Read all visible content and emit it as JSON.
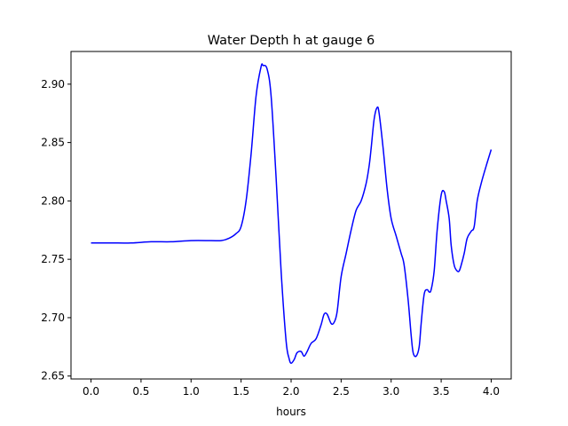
{
  "chart_data": {
    "type": "line",
    "title": "Water Depth h at gauge 6",
    "xlabel": "hours",
    "ylabel": "",
    "xlim": [
      -0.2,
      4.2
    ],
    "ylim": [
      2.6475,
      2.928
    ],
    "xticks": [
      0.0,
      0.5,
      1.0,
      1.5,
      2.0,
      2.5,
      3.0,
      3.5,
      4.0
    ],
    "xtick_labels": [
      "0.0",
      "0.5",
      "1.0",
      "1.5",
      "2.0",
      "2.5",
      "3.0",
      "3.5",
      "4.0"
    ],
    "yticks": [
      2.65,
      2.7,
      2.75,
      2.8,
      2.85,
      2.9
    ],
    "ytick_labels": [
      "2.65",
      "2.70",
      "2.75",
      "2.80",
      "2.85",
      "2.90"
    ],
    "grid": false,
    "series": [
      {
        "color": "#0000ff",
        "x": [
          0.0,
          0.2,
          0.4,
          0.6,
          0.8,
          1.0,
          1.2,
          1.3,
          1.38,
          1.45,
          1.5,
          1.55,
          1.6,
          1.65,
          1.7,
          1.72,
          1.76,
          1.8,
          1.85,
          1.9,
          1.95,
          1.98,
          2.0,
          2.03,
          2.06,
          2.1,
          2.13,
          2.16,
          2.2,
          2.25,
          2.3,
          2.33,
          2.36,
          2.4,
          2.43,
          2.46,
          2.5,
          2.55,
          2.6,
          2.65,
          2.7,
          2.75,
          2.78,
          2.8,
          2.83,
          2.86,
          2.88,
          2.92,
          2.96,
          3.0,
          3.05,
          3.1,
          3.13,
          3.17,
          3.2,
          3.22,
          3.25,
          3.28,
          3.3,
          3.33,
          3.36,
          3.38,
          3.4,
          3.43,
          3.46,
          3.5,
          3.53,
          3.55,
          3.58,
          3.6,
          3.63,
          3.66,
          3.68,
          3.7,
          3.73,
          3.76,
          3.8,
          3.83,
          3.86,
          3.9,
          3.95,
          4.0
        ],
        "y": [
          2.764,
          2.764,
          2.764,
          2.765,
          2.765,
          2.766,
          2.766,
          2.766,
          2.768,
          2.772,
          2.778,
          2.8,
          2.84,
          2.89,
          2.915,
          2.916,
          2.913,
          2.89,
          2.82,
          2.74,
          2.68,
          2.665,
          2.661,
          2.664,
          2.67,
          2.671,
          2.667,
          2.671,
          2.678,
          2.682,
          2.694,
          2.703,
          2.703,
          2.695,
          2.696,
          2.705,
          2.735,
          2.755,
          2.775,
          2.792,
          2.8,
          2.815,
          2.83,
          2.845,
          2.87,
          2.88,
          2.875,
          2.845,
          2.81,
          2.785,
          2.77,
          2.755,
          2.745,
          2.715,
          2.685,
          2.67,
          2.667,
          2.675,
          2.695,
          2.72,
          2.724,
          2.722,
          2.724,
          2.74,
          2.775,
          2.805,
          2.808,
          2.8,
          2.785,
          2.762,
          2.745,
          2.74,
          2.74,
          2.745,
          2.755,
          2.768,
          2.774,
          2.778,
          2.8,
          2.815,
          2.83,
          2.844
        ]
      }
    ]
  }
}
